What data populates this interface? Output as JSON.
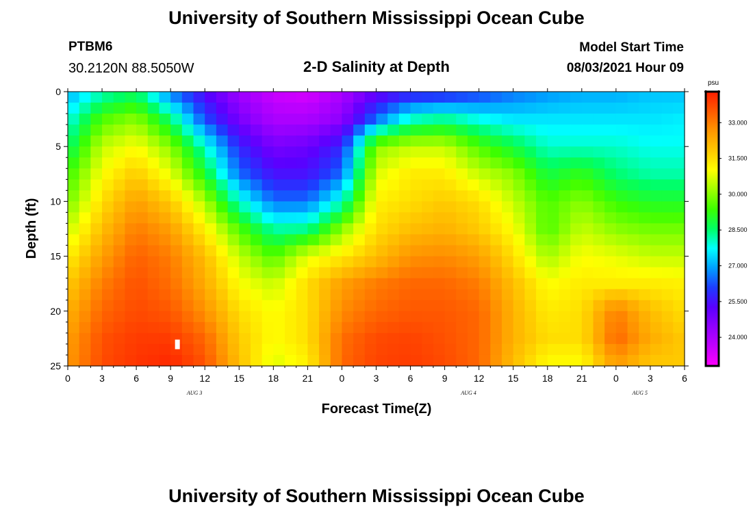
{
  "header": {
    "title": "University of Southern Mississippi Ocean Cube",
    "station": "PTBM6",
    "coordinates": "30.2120N  88.5050W",
    "subtitle": "2-D Salinity at Depth",
    "model_start_label": "Model Start Time",
    "model_start_value": "08/03/2021 Hour 09"
  },
  "footer": {
    "title": "University of Southern Mississippi Ocean Cube"
  },
  "colors": {
    "palette": [
      "#ff00ff",
      "#c300ff",
      "#9100ff",
      "#5a00ff",
      "#1e3cff",
      "#00a0ff",
      "#00ffff",
      "#00ff64",
      "#3cff00",
      "#a0ff00",
      "#ffff00",
      "#ffc800",
      "#ff9600",
      "#ff5a00",
      "#ff1e00"
    ]
  },
  "chart_data": {
    "type": "heatmap",
    "title": "2-D Salinity at Depth",
    "xlabel": "Forecast Time(Z)",
    "ylabel": "Depth (ft)",
    "x_ticks": [
      "0",
      "3",
      "6",
      "9",
      "12",
      "15",
      "18",
      "21",
      "0",
      "3",
      "6",
      "9",
      "12",
      "15",
      "18",
      "21",
      "0",
      "3",
      "6"
    ],
    "x_range_hours": [
      0,
      54
    ],
    "date_labels": [
      {
        "text": "AUG 3",
        "hour": 11.5
      },
      {
        "text": "AUG 4",
        "hour": 35.5
      },
      {
        "text": "AUG 5",
        "hour": 50.5
      }
    ],
    "y_ticks": [
      "0",
      "5",
      "10",
      "15",
      "20",
      "25"
    ],
    "y_range_ft": [
      0,
      25
    ],
    "y_inverted": true,
    "colorbar": {
      "unit": "psu",
      "ticks": [
        "33.000",
        "31.500",
        "30.000",
        "28.500",
        "27.000",
        "25.500",
        "24.000"
      ],
      "tick_values": [
        33.0,
        31.5,
        30.0,
        28.5,
        27.0,
        25.5,
        24.0
      ],
      "range": [
        22.8,
        34.3
      ]
    },
    "grid_hours": [
      0,
      3,
      6,
      9,
      12,
      15,
      18,
      21,
      24,
      27,
      30,
      33,
      36,
      39,
      42,
      45,
      48,
      51,
      54
    ],
    "grid_depths_ft": [
      0,
      2.5,
      5,
      7.5,
      10,
      12.5,
      15,
      17.5,
      20,
      22.5,
      25
    ],
    "salinity_psu": [
      [
        27.0,
        28.0,
        28.5,
        26.5,
        25.3,
        24.2,
        23.5,
        23.3,
        24.0,
        25.0,
        25.5,
        25.6,
        26.0,
        26.5,
        26.8,
        27.0,
        27.0,
        27.2,
        27.2
      ],
      [
        27.8,
        29.5,
        30.0,
        28.5,
        26.2,
        24.8,
        24.0,
        24.0,
        24.5,
        26.5,
        28.0,
        28.3,
        27.8,
        27.5,
        27.5,
        27.5,
        27.5,
        27.5,
        27.6
      ],
      [
        28.5,
        30.5,
        31.0,
        30.0,
        28.0,
        25.8,
        24.8,
        25.0,
        25.8,
        30.0,
        30.5,
        30.5,
        29.5,
        28.8,
        28.0,
        28.0,
        28.0,
        27.8,
        27.8
      ],
      [
        29.3,
        31.0,
        31.8,
        30.8,
        29.0,
        26.5,
        25.5,
        25.5,
        26.5,
        30.7,
        31.3,
        31.3,
        30.5,
        30.0,
        28.8,
        29.2,
        28.5,
        28.2,
        28.2
      ],
      [
        29.8,
        31.5,
        32.5,
        31.8,
        30.3,
        28.0,
        26.5,
        26.5,
        28.0,
        31.2,
        31.5,
        31.8,
        31.5,
        30.5,
        29.5,
        30.0,
        29.3,
        29.0,
        29.0
      ],
      [
        30.5,
        32.0,
        33.0,
        32.5,
        31.2,
        29.5,
        28.2,
        28.3,
        30.0,
        31.5,
        32.0,
        32.2,
        31.8,
        31.0,
        29.5,
        30.5,
        30.0,
        29.8,
        29.8
      ],
      [
        31.2,
        32.5,
        33.4,
        33.0,
        32.0,
        30.5,
        29.5,
        30.8,
        31.3,
        32.0,
        32.7,
        32.8,
        32.5,
        31.5,
        30.2,
        31.0,
        30.8,
        30.5,
        30.5
      ],
      [
        31.8,
        33.0,
        33.6,
        33.2,
        32.3,
        31.0,
        30.5,
        31.5,
        32.5,
        33.0,
        33.3,
        33.3,
        33.0,
        32.0,
        31.0,
        31.3,
        31.3,
        31.3,
        31.2
      ],
      [
        32.2,
        33.3,
        33.7,
        33.5,
        32.7,
        31.5,
        31.0,
        31.5,
        32.8,
        33.3,
        33.5,
        33.5,
        33.3,
        32.2,
        31.3,
        31.5,
        33.0,
        32.0,
        31.5
      ],
      [
        32.5,
        33.6,
        33.9,
        33.9,
        33.3,
        31.8,
        31.0,
        31.5,
        33.2,
        33.7,
        33.8,
        33.6,
        33.3,
        32.2,
        31.5,
        31.5,
        33.3,
        32.3,
        31.8
      ],
      [
        32.6,
        33.7,
        34.0,
        34.2,
        33.6,
        32.0,
        30.7,
        31.2,
        33.3,
        33.8,
        33.9,
        33.7,
        33.3,
        32.0,
        31.0,
        31.0,
        32.5,
        31.8,
        31.8
      ]
    ]
  }
}
